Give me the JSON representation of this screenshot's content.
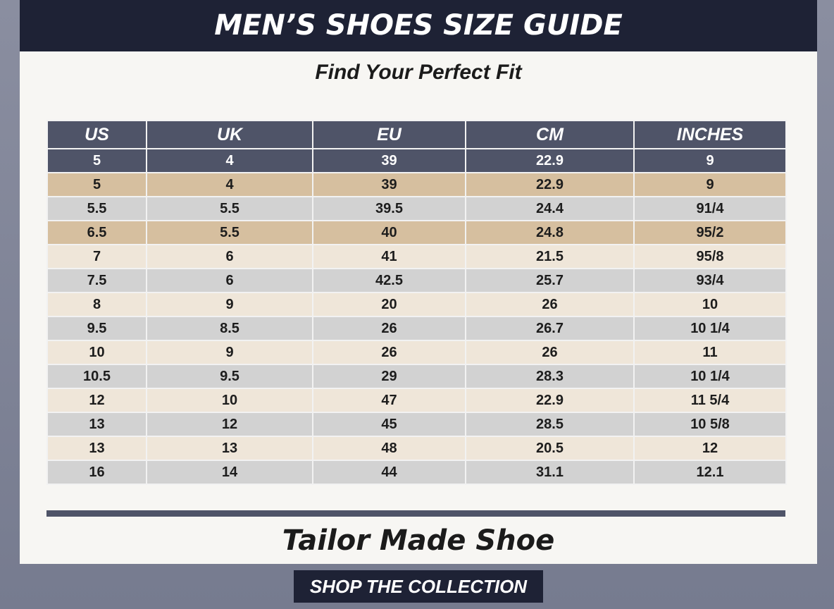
{
  "header": {
    "title": "MEN’S SHOES SIZE GUIDE",
    "subtitle": "Find Your Perfect Fit"
  },
  "table": {
    "columns": [
      "US",
      "UK",
      "EU",
      "CM",
      "INCHES"
    ],
    "rows": [
      [
        "5",
        "4",
        "39",
        "22.9",
        "9"
      ],
      [
        "5",
        "4",
        "39",
        "22.9",
        "9"
      ],
      [
        "5.5",
        "5.5",
        "39.5",
        "24.4",
        "91/4"
      ],
      [
        "6.5",
        "5.5",
        "40",
        "24.8",
        "95/2"
      ],
      [
        "7",
        "6",
        "41",
        "21.5",
        "95/8"
      ],
      [
        "7.5",
        "6",
        "42.5",
        "25.7",
        "93/4"
      ],
      [
        "8",
        "9",
        "20",
        "26",
        "10"
      ],
      [
        "9.5",
        "8.5",
        "26",
        "26.7",
        "10 1/4"
      ],
      [
        "10",
        "9",
        "26",
        "26",
        "11"
      ],
      [
        "10.5",
        "9.5",
        "29",
        "28.3",
        "10 1/4"
      ],
      [
        "12",
        "10",
        "47",
        "22.9",
        "11 5/4"
      ],
      [
        "13",
        "12",
        "45",
        "28.5",
        "10 5/8"
      ],
      [
        "13",
        "13",
        "48",
        "20.5",
        "12"
      ],
      [
        "16",
        "14",
        "44",
        "31.1",
        "12.1"
      ]
    ]
  },
  "footer": {
    "brand": "Tailor Made Shoe",
    "button": "SHOP THE COLLECTION"
  }
}
